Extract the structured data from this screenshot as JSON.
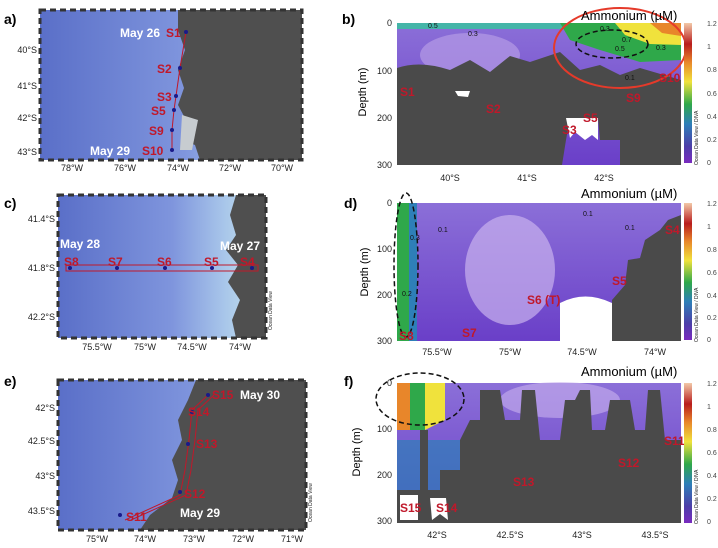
{
  "panels": [
    {
      "id": "a",
      "letter": "a)",
      "kind": "map",
      "station_labels": [
        "S1",
        "S2",
        "S3",
        "S5",
        "S9",
        "S10"
      ],
      "date_labels": [
        "May 26",
        "May 29"
      ],
      "y_ticks": [
        "40°S",
        "41°S",
        "42°S",
        "43°S"
      ],
      "x_ticks": [
        "78°W",
        "76°W",
        "74°W",
        "72°W",
        "70°W"
      ]
    },
    {
      "id": "b",
      "letter": "b)",
      "kind": "section",
      "ylabel": "Depth (m)",
      "y_ticks": [
        "0",
        "100",
        "200",
        "300"
      ],
      "x_ticks": [
        "40°S",
        "41°S",
        "42°S"
      ],
      "station_labels": [
        "S1",
        "S2",
        "S3",
        "S5",
        "S9",
        "S10"
      ],
      "colorbar_title": "Ammonium (µM)",
      "colorbar_ticks": [
        "1.2",
        "1",
        "0.8",
        "0.6",
        "0.4",
        "0.2",
        "0"
      ],
      "contour_labels": [
        "0.5",
        "0.3",
        "0.3",
        "0.7",
        "0.5",
        "0.3",
        "0.1"
      ],
      "watermark": "Ocean Data View / DIVA"
    },
    {
      "id": "c",
      "letter": "c)",
      "kind": "map",
      "station_labels": [
        "S8",
        "S7",
        "S6",
        "S5",
        "S4"
      ],
      "date_labels": [
        "May 28",
        "May 27"
      ],
      "y_ticks": [
        "41.4°S",
        "41.8°S",
        "42.2°S"
      ],
      "x_ticks": [
        "75.5°W",
        "75°W",
        "74.5°W",
        "74°W"
      ],
      "watermark": "Ocean Data View"
    },
    {
      "id": "d",
      "letter": "d)",
      "kind": "section",
      "ylabel": "Depth (m)",
      "y_ticks": [
        "0",
        "100",
        "200",
        "300"
      ],
      "x_ticks": [
        "75.5°W",
        "75°W",
        "74.5°W",
        "74°W"
      ],
      "station_labels": [
        "S4",
        "S5",
        "S6 (T)",
        "S7",
        "S8"
      ],
      "colorbar_title": "Ammonium (µM)",
      "colorbar_ticks": [
        "1.2",
        "1",
        "0.8",
        "0.6",
        "0.4",
        "0.2",
        "0"
      ],
      "contour_labels": [
        "0.3",
        "0.1",
        "0.1",
        "0.1",
        "0.2"
      ],
      "watermark": "Ocean Data View / DIVA"
    },
    {
      "id": "e",
      "letter": "e)",
      "kind": "map",
      "station_labels": [
        "S15",
        "S14",
        "S13",
        "S12",
        "S11"
      ],
      "date_labels": [
        "May 30",
        "May 29"
      ],
      "y_ticks": [
        "42°S",
        "42.5°S",
        "43°S",
        "43.5°S"
      ],
      "x_ticks": [
        "75°W",
        "74°W",
        "73°W",
        "72°W",
        "71°W"
      ],
      "watermark": "Ocean Data View"
    },
    {
      "id": "f",
      "letter": "f)",
      "kind": "section",
      "ylabel": "Depth (m)",
      "y_ticks": [
        "0",
        "100",
        "200",
        "300"
      ],
      "x_ticks": [
        "42°S",
        "42.5°S",
        "43°S",
        "43.5°S"
      ],
      "station_labels": [
        "S15",
        "S14",
        "S13",
        "S12",
        "S11"
      ],
      "colorbar_title": "Ammonium (µM)",
      "colorbar_ticks": [
        "1.2",
        "1",
        "0.8",
        "0.6",
        "0.4",
        "0.2",
        "0"
      ],
      "watermark": "Ocean Data View / DIVA"
    }
  ],
  "chart_data": [
    {
      "type": "heatmap",
      "panel": "b",
      "ylabel": "Depth (m)",
      "ylim": [
        300,
        0
      ],
      "xlim_label_range": [
        "40°S",
        "42°S"
      ],
      "colorbar_title": "Ammonium (µM)",
      "clim": [
        0,
        1.2
      ],
      "stations": [
        "S1",
        "S2",
        "S3",
        "S5",
        "S9",
        "S10"
      ],
      "annotations": [
        "red ellipse around high-ammonium surface patch near S9–S10",
        "dashed ellipse near 42°S surface"
      ]
    },
    {
      "type": "heatmap",
      "panel": "d",
      "ylabel": "Depth (m)",
      "ylim": [
        300,
        0
      ],
      "colorbar_title": "Ammonium (µM)",
      "clim": [
        0,
        1.2
      ],
      "stations": [
        "S4",
        "S5",
        "S6 (T)",
        "S7",
        "S8"
      ],
      "annotations": [
        "dashed ellipse around high values near S8 (75.5°W)"
      ]
    },
    {
      "type": "heatmap",
      "panel": "f",
      "ylabel": "Depth (m)",
      "ylim": [
        300,
        0
      ],
      "colorbar_title": "Ammonium (µM)",
      "clim": [
        0,
        1.2
      ],
      "stations": [
        "S15",
        "S14",
        "S13",
        "S12",
        "S11"
      ],
      "annotations": [
        "dashed ellipse around surface maximum near S15"
      ]
    }
  ]
}
